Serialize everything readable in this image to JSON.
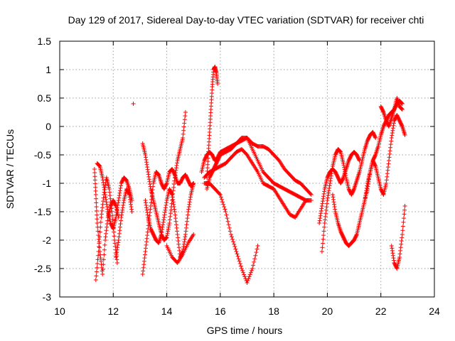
{
  "chart_data": {
    "type": "scatter",
    "title": "Day 129 of 2017, Sidereal Day-to-day VTEC variation (SDTVAR) for receiver chti",
    "xlabel": "GPS time / hours",
    "ylabel": "SDTVAR / TECUs",
    "xlim": [
      10,
      24
    ],
    "ylim": [
      -3,
      1.5
    ],
    "xticks": [
      10,
      12,
      14,
      16,
      18,
      20,
      22,
      24
    ],
    "yticks": [
      -3,
      -2.5,
      -2,
      -1.5,
      -1,
      -0.5,
      0,
      0.5,
      1,
      1.5
    ],
    "xtick_labels": [
      "10",
      "12",
      "14",
      "16",
      "18",
      "20",
      "22",
      "24"
    ],
    "ytick_labels": [
      "-3",
      "-2.5",
      "-2",
      "-1.5",
      "-1",
      "-0.5",
      "0",
      "0.5",
      "1",
      "1.5"
    ],
    "grid": true,
    "marker": "+",
    "series_color": "#ff0000",
    "tracks": [
      {
        "name": "track-1",
        "x": [
          11.3,
          11.35,
          11.4,
          11.5,
          11.6,
          11.7,
          11.8,
          11.9,
          12.0,
          12.1,
          12.2
        ],
        "y": [
          -0.75,
          -1.2,
          -1.7,
          -2.2,
          -2.6,
          -2.0,
          -1.6,
          -1.4,
          -1.3,
          -1.4,
          -1.6
        ]
      },
      {
        "name": "track-2",
        "x": [
          11.35,
          11.45,
          11.55,
          11.65,
          11.75,
          11.85,
          11.95,
          12.05,
          12.15
        ],
        "y": [
          -2.7,
          -2.2,
          -1.6,
          -1.2,
          -0.9,
          -1.1,
          -1.5,
          -2.0,
          -2.4
        ]
      },
      {
        "name": "track-3",
        "x": [
          11.4,
          11.5,
          11.6,
          11.7,
          11.8,
          11.9,
          12.0,
          12.1,
          12.2,
          12.3,
          12.4,
          12.5,
          12.6,
          12.7
        ],
        "y": [
          -0.65,
          -0.7,
          -0.9,
          -1.2,
          -1.5,
          -1.7,
          -1.8,
          -1.6,
          -1.3,
          -1.0,
          -0.9,
          -0.95,
          -1.1,
          -1.3
        ]
      },
      {
        "name": "track-4",
        "x": [
          12.1,
          12.2,
          12.3,
          12.4,
          12.5,
          12.6,
          12.7
        ],
        "y": [
          -2.3,
          -2.0,
          -1.6,
          -1.3,
          -1.1,
          -1.2,
          -1.5
        ]
      },
      {
        "name": "outlier",
        "x": [
          12.75
        ],
        "y": [
          0.4
        ]
      },
      {
        "name": "track-5",
        "x": [
          13.1,
          13.2,
          13.3,
          13.4,
          13.5,
          13.6,
          13.7,
          13.8,
          13.9,
          14.0,
          14.1,
          14.2,
          14.3,
          14.4,
          14.5,
          14.6,
          14.7
        ],
        "y": [
          -0.3,
          -0.5,
          -0.8,
          -1.1,
          -1.3,
          -1.5,
          -1.7,
          -1.9,
          -2.0,
          -1.95,
          -1.7,
          -1.3,
          -0.9,
          -0.6,
          -0.4,
          -0.2,
          0.25
        ]
      },
      {
        "name": "track-6",
        "x": [
          13.1,
          13.2,
          13.3,
          13.4,
          13.5,
          13.6,
          13.7,
          13.8,
          13.9,
          14.0,
          14.1,
          14.2,
          14.3,
          14.4,
          14.5,
          14.6,
          14.7,
          14.8,
          14.9,
          15.0
        ],
        "y": [
          -2.6,
          -2.2,
          -1.8,
          -1.4,
          -1.0,
          -0.8,
          -0.85,
          -1.0,
          -1.1,
          -1.0,
          -0.8,
          -0.75,
          -0.85,
          -1.0,
          -1.0,
          -0.9,
          -0.85,
          -0.95,
          -1.05,
          -1.0
        ]
      },
      {
        "name": "track-7",
        "x": [
          13.2,
          13.3,
          13.4,
          13.5,
          13.6,
          13.7,
          13.8,
          13.9,
          14.0,
          14.1,
          14.2,
          14.3,
          14.4,
          14.5,
          14.6,
          14.7,
          14.8,
          14.9,
          15.0
        ],
        "y": [
          -1.3,
          -1.6,
          -1.8,
          -1.9,
          -2.0,
          -2.05,
          -1.9,
          -1.6,
          -1.3,
          -1.1,
          -1.2,
          -1.5,
          -1.9,
          -2.3,
          -2.2,
          -1.9,
          -1.5,
          -1.2,
          -1.0
        ]
      },
      {
        "name": "track-8",
        "x": [
          14.0,
          14.2,
          14.4,
          14.6,
          14.8,
          15.0
        ],
        "y": [
          -2.1,
          -2.3,
          -2.4,
          -2.25,
          -2.05,
          -1.9
        ]
      },
      {
        "name": "track-9",
        "x": [
          15.3,
          15.4,
          15.5,
          15.6,
          15.7,
          15.8,
          15.9,
          16.0,
          16.2,
          16.4,
          16.6,
          16.8,
          17.0,
          17.2,
          17.4,
          17.6,
          17.8,
          18.0,
          18.2,
          18.4,
          18.6,
          18.8,
          19.0,
          19.2,
          19.4
        ],
        "y": [
          -0.8,
          -0.6,
          -0.5,
          -0.45,
          -0.5,
          -0.6,
          -0.55,
          -0.45,
          -0.4,
          -0.35,
          -0.3,
          -0.25,
          -0.2,
          -0.3,
          -0.35,
          -0.35,
          -0.4,
          -0.5,
          -0.6,
          -0.75,
          -0.85,
          -0.95,
          -1.0,
          -1.1,
          -1.2
        ]
      },
      {
        "name": "track-10",
        "x": [
          15.5,
          15.6,
          15.7,
          15.8,
          15.9,
          16.0,
          16.2,
          16.4,
          16.6,
          16.8,
          17.0,
          17.2,
          17.4,
          17.6,
          17.8,
          18.0,
          18.2,
          18.4,
          18.6,
          18.8,
          19.0,
          19.2,
          19.4
        ],
        "y": [
          -1.1,
          -0.9,
          -0.8,
          -0.7,
          -0.6,
          -0.5,
          -0.45,
          -0.4,
          -0.3,
          -0.2,
          -0.2,
          -0.4,
          -0.6,
          -0.8,
          -0.9,
          -1.0,
          -1.05,
          -1.1,
          -1.15,
          -1.2,
          -1.25,
          -1.3,
          -1.3
        ]
      },
      {
        "name": "track-11",
        "x": [
          15.4,
          15.6,
          15.8,
          16.0,
          16.2,
          16.4,
          16.6,
          16.8,
          17.0,
          17.2,
          17.4,
          17.6,
          17.8,
          18.0,
          18.2,
          18.4,
          18.6,
          18.8,
          19.0,
          19.2
        ],
        "y": [
          -0.9,
          -0.8,
          -0.75,
          -0.7,
          -0.65,
          -0.55,
          -0.45,
          -0.4,
          -0.5,
          -0.65,
          -0.8,
          -1.0,
          -1.05,
          -1.1,
          -1.25,
          -1.4,
          -1.55,
          -1.6,
          -1.45,
          -1.3
        ]
      },
      {
        "name": "track-12",
        "x": [
          15.4,
          15.6,
          15.8,
          16.0,
          16.2,
          16.4,
          16.6,
          16.8,
          17.0,
          17.2,
          17.4
        ],
        "y": [
          -1.0,
          -1.0,
          -1.1,
          -1.2,
          -1.5,
          -1.9,
          -2.2,
          -2.5,
          -2.75,
          -2.5,
          -2.1
        ]
      },
      {
        "name": "track-13",
        "x": [
          15.5,
          15.55,
          15.6,
          15.65,
          15.7,
          15.75,
          15.8,
          15.85,
          15.9
        ],
        "y": [
          -0.9,
          -0.5,
          -0.1,
          0.3,
          0.7,
          1.0,
          1.05,
          0.95,
          0.75
        ]
      },
      {
        "name": "track-14",
        "x": [
          19.7,
          19.8,
          19.9,
          20.0,
          20.1,
          20.2,
          20.3,
          20.4,
          20.5,
          20.6,
          20.7,
          20.8,
          20.9,
          21.0,
          21.1,
          21.2
        ],
        "y": [
          -1.7,
          -1.4,
          -1.1,
          -0.9,
          -0.8,
          -0.75,
          -0.8,
          -0.9,
          -1.0,
          -0.9,
          -0.75,
          -0.6,
          -0.5,
          -0.45,
          -0.5,
          -0.6
        ]
      },
      {
        "name": "track-15",
        "x": [
          19.8,
          19.9,
          20.0,
          20.1,
          20.2,
          20.3,
          20.4,
          20.5,
          20.6,
          20.7,
          20.8,
          20.9,
          21.0,
          21.1,
          21.2,
          21.3,
          21.4,
          21.5,
          21.6,
          21.7,
          21.8
        ],
        "y": [
          -2.2,
          -1.7,
          -1.3,
          -1.0,
          -0.7,
          -0.5,
          -0.4,
          -0.45,
          -0.65,
          -0.9,
          -1.1,
          -1.2,
          -1.1,
          -0.95,
          -0.8,
          -0.6,
          -0.4,
          -0.25,
          -0.15,
          -0.1,
          -0.2
        ]
      },
      {
        "name": "track-16",
        "x": [
          20.2,
          20.3,
          20.4,
          20.5,
          20.6,
          20.7,
          20.8,
          20.9,
          21.0,
          21.1,
          21.2,
          21.3,
          21.4,
          21.5,
          21.6,
          21.7,
          21.8,
          21.9,
          22.0,
          22.1,
          22.2,
          22.3,
          22.4,
          22.5,
          22.6,
          22.7,
          22.8
        ],
        "y": [
          -1.2,
          -1.5,
          -1.7,
          -1.85,
          -1.95,
          -2.05,
          -2.1,
          -2.05,
          -2.0,
          -1.9,
          -1.7,
          -1.5,
          -1.3,
          -1.1,
          -0.8,
          -0.6,
          -0.5,
          -0.35,
          -0.15,
          0.0,
          0.1,
          0.2,
          0.25,
          0.3,
          0.4,
          0.45,
          0.4
        ]
      },
      {
        "name": "track-17",
        "x": [
          21.4,
          21.5,
          21.6,
          21.7,
          21.8,
          21.9,
          22.0,
          22.1,
          22.2,
          22.3,
          22.4,
          22.5,
          22.6,
          22.7,
          22.8,
          22.9
        ],
        "y": [
          -1.3,
          -1.0,
          -0.8,
          -0.6,
          -0.7,
          -0.9,
          -1.1,
          -1.2,
          -1.0,
          -0.6,
          -0.2,
          0.1,
          0.2,
          0.1,
          0.0,
          -0.15
        ]
      },
      {
        "name": "track-18",
        "x": [
          22.4,
          22.5,
          22.6,
          22.7,
          22.8,
          22.9
        ],
        "y": [
          -2.1,
          -2.4,
          -2.5,
          -2.3,
          -1.9,
          -1.4
        ]
      },
      {
        "name": "track-19",
        "x": [
          22.0,
          22.1,
          22.2,
          22.3,
          22.4,
          22.5,
          22.6,
          22.7,
          22.8
        ],
        "y": [
          0.35,
          0.25,
          0.1,
          0.0,
          0.15,
          0.3,
          0.5,
          0.35,
          0.3
        ]
      }
    ]
  }
}
